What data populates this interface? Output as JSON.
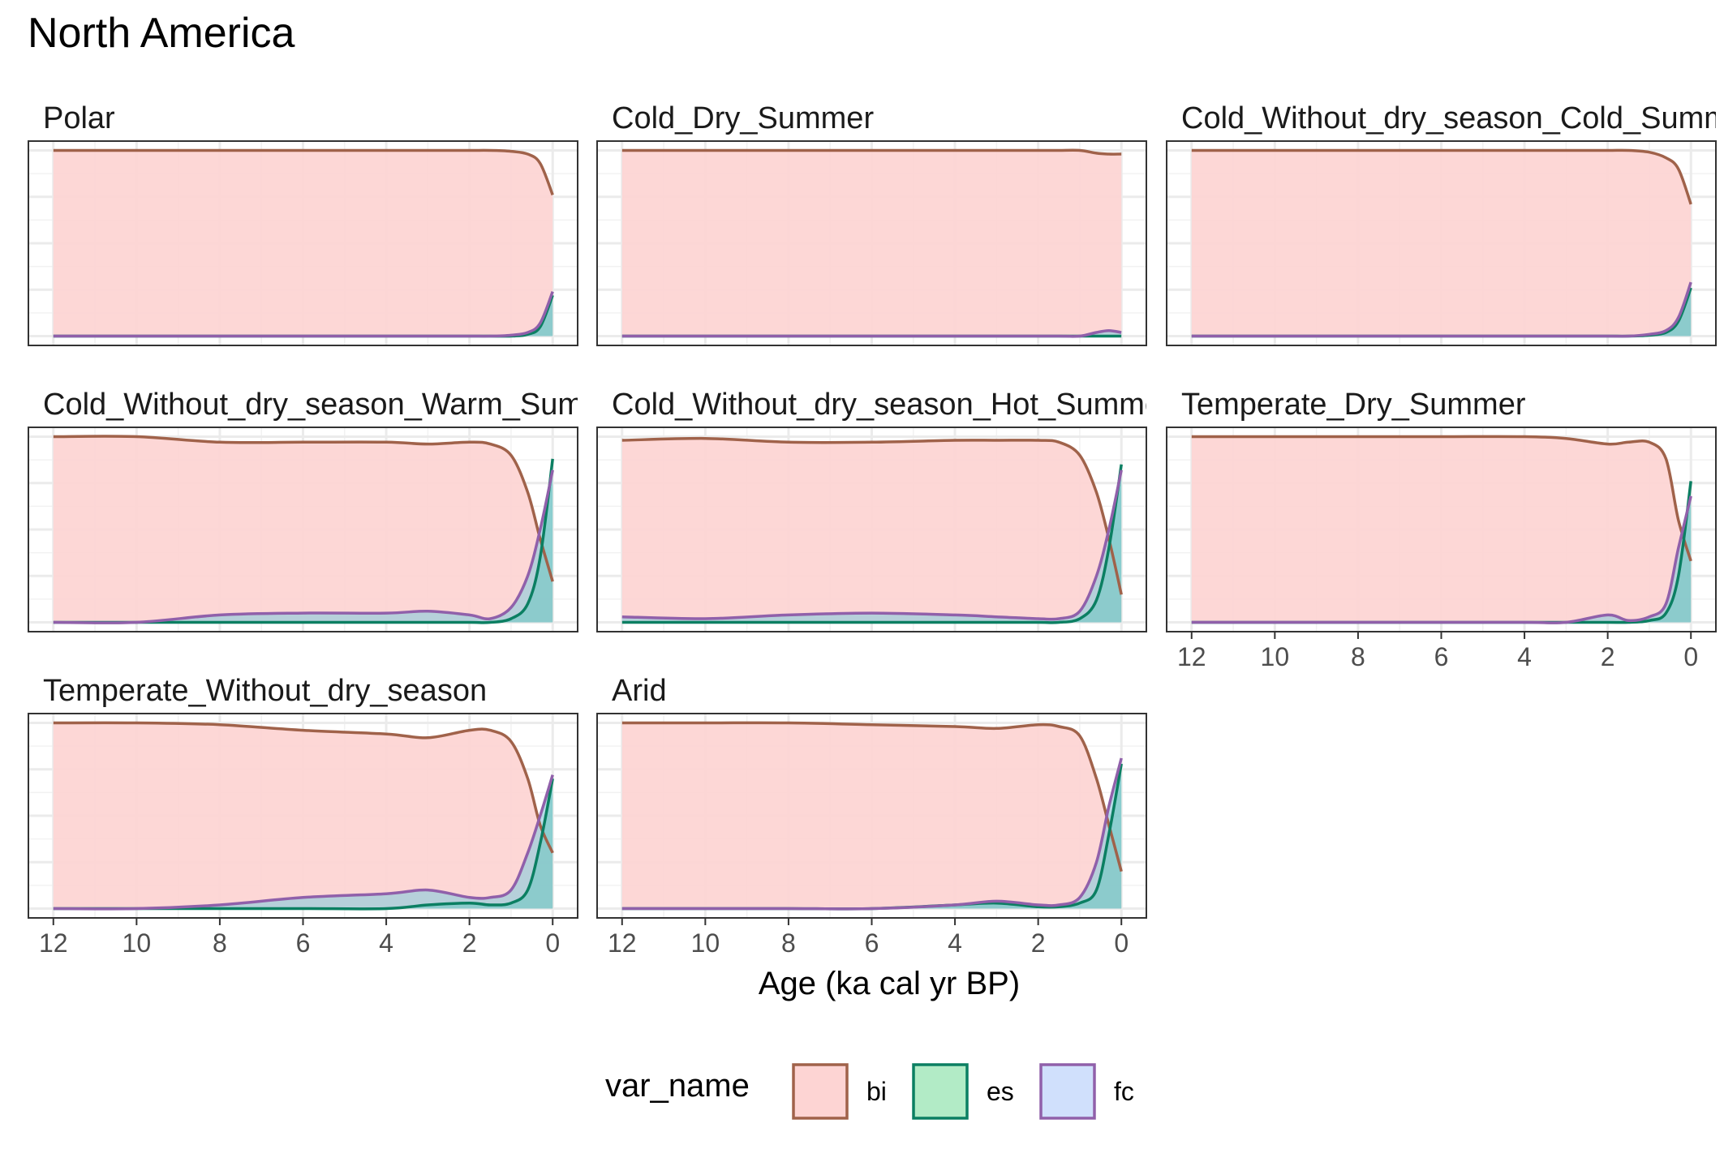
{
  "title": "North America",
  "chart_data": {
    "type": "area",
    "title": "North America",
    "xlabel": "Age (ka cal yr BP)",
    "ylabel": "",
    "xlim": [
      12.6,
      -0.6
    ],
    "x_ticks": [
      12,
      10,
      8,
      6,
      4,
      2,
      0
    ],
    "x_reversed": true,
    "grid": true,
    "y_tick_labels_shown": false,
    "legend": {
      "title": "var_name",
      "placement": "bottom",
      "entries": [
        {
          "name": "bi",
          "fill": "#fdd4d3",
          "stroke": "#a0624a"
        },
        {
          "name": "es",
          "fill": "#b2ebc6",
          "stroke": "#0b7f62"
        },
        {
          "name": "fc",
          "fill": "#d0e0fc",
          "stroke": "#9060aa"
        }
      ]
    },
    "x": [
      12,
      10,
      8,
      6,
      4,
      3,
      2,
      1.5,
      1,
      0.6,
      0.3,
      0
    ],
    "panels": [
      {
        "name": "Polar",
        "show_x_axis": false,
        "bi": [
          1.0,
          1.0,
          1.0,
          1.0,
          1.0,
          1.0,
          1.0,
          1.0,
          0.995,
          0.98,
          0.93,
          0.76
        ],
        "es": [
          0,
          0,
          0,
          0,
          0,
          0,
          0,
          0,
          0,
          0.01,
          0.05,
          0.22
        ],
        "fc": [
          0,
          0,
          0,
          0,
          0,
          0,
          0,
          0,
          0.005,
          0.02,
          0.07,
          0.24
        ]
      },
      {
        "name": "Cold_Dry_Summer",
        "show_x_axis": false,
        "bi": [
          1.0,
          1.0,
          1.0,
          1.0,
          1.0,
          1.0,
          1.0,
          1.0,
          1.0,
          0.985,
          0.98,
          0.98
        ],
        "es": [
          0,
          0,
          0,
          0,
          0,
          0,
          0,
          0,
          0,
          0,
          0,
          0
        ],
        "fc": [
          0,
          0,
          0,
          0,
          0,
          0,
          0,
          0,
          0.0,
          0.02,
          0.03,
          0.02
        ]
      },
      {
        "name": "Cold_Without_dry_season_Cold_Summer",
        "show_x_axis": false,
        "bi": [
          1.0,
          1.0,
          1.0,
          1.0,
          1.0,
          1.0,
          1.0,
          1.0,
          0.99,
          0.96,
          0.9,
          0.71
        ],
        "es": [
          0,
          0,
          0,
          0,
          0,
          0,
          0,
          0,
          0.005,
          0.02,
          0.08,
          0.26
        ],
        "fc": [
          0,
          0,
          0,
          0,
          0,
          0,
          0,
          0,
          0.01,
          0.03,
          0.1,
          0.29
        ]
      },
      {
        "name": "Cold_Without_dry_season_Warm_Summer",
        "show_x_axis": false,
        "bi": [
          1.0,
          1.0,
          0.97,
          0.97,
          0.97,
          0.96,
          0.97,
          0.96,
          0.9,
          0.7,
          0.45,
          0.22
        ],
        "es": [
          0,
          0,
          0,
          0,
          0,
          0,
          0,
          0,
          0.02,
          0.1,
          0.35,
          0.88
        ],
        "fc": [
          0,
          0,
          0.04,
          0.05,
          0.05,
          0.06,
          0.04,
          0.02,
          0.08,
          0.25,
          0.5,
          0.82
        ]
      },
      {
        "name": "Cold_Without_dry_season_Hot_Summer",
        "show_x_axis": false,
        "bi": [
          0.98,
          0.99,
          0.97,
          0.97,
          0.98,
          0.98,
          0.98,
          0.97,
          0.9,
          0.7,
          0.45,
          0.15
        ],
        "es": [
          0,
          0,
          0,
          0,
          0,
          0,
          0,
          0,
          0.02,
          0.12,
          0.4,
          0.85
        ],
        "fc": [
          0.03,
          0.02,
          0.04,
          0.05,
          0.04,
          0.03,
          0.02,
          0.02,
          0.06,
          0.25,
          0.5,
          0.82
        ]
      },
      {
        "name": "Temperate_Dry_Summer",
        "show_x_axis": true,
        "bi": [
          1.0,
          1.0,
          1.0,
          1.0,
          1.0,
          0.99,
          0.96,
          0.97,
          0.97,
          0.88,
          0.55,
          0.33
        ],
        "es": [
          0,
          0,
          0,
          0,
          0,
          0,
          0,
          0,
          0.01,
          0.05,
          0.25,
          0.76
        ],
        "fc": [
          0,
          0,
          0,
          0,
          0,
          0,
          0.04,
          0.01,
          0.03,
          0.1,
          0.4,
          0.68
        ]
      },
      {
        "name": "Temperate_Without_dry_season",
        "show_x_axis": true,
        "bi": [
          1.0,
          1.0,
          0.99,
          0.96,
          0.94,
          0.92,
          0.96,
          0.96,
          0.9,
          0.7,
          0.45,
          0.3
        ],
        "es": [
          0,
          0,
          0,
          0,
          0,
          0.02,
          0.03,
          0.02,
          0.03,
          0.1,
          0.35,
          0.7
        ],
        "fc": [
          0,
          0,
          0.02,
          0.06,
          0.08,
          0.1,
          0.06,
          0.06,
          0.1,
          0.3,
          0.5,
          0.72
        ]
      },
      {
        "name": "Arid",
        "show_x_axis": true,
        "bi": [
          1.0,
          1.0,
          1.0,
          0.99,
          0.98,
          0.97,
          0.99,
          0.98,
          0.93,
          0.7,
          0.45,
          0.2
        ],
        "es": [
          0,
          0,
          0,
          0,
          0.02,
          0.03,
          0.01,
          0.01,
          0.03,
          0.1,
          0.4,
          0.78
        ],
        "fc": [
          0,
          0,
          0,
          0,
          0.02,
          0.04,
          0.02,
          0.02,
          0.06,
          0.25,
          0.55,
          0.81
        ]
      }
    ]
  }
}
